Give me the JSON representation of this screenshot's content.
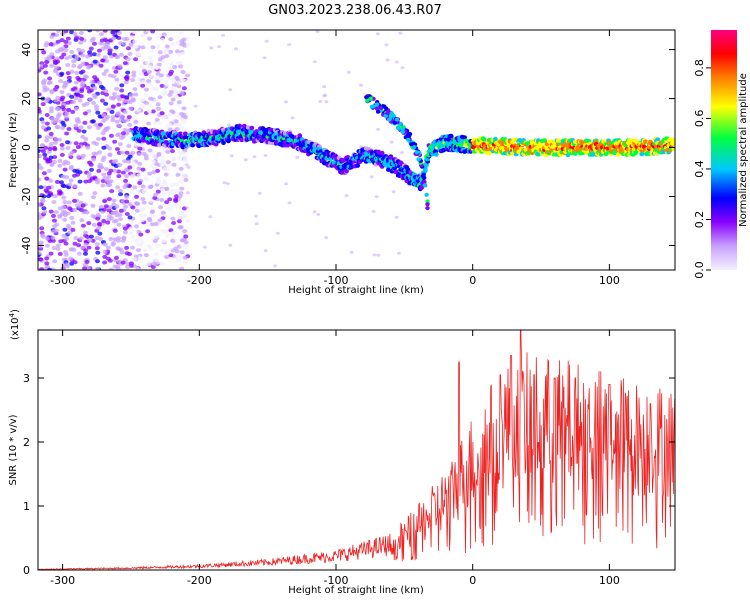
{
  "title": "GN03.2023.238.06.43.R07",
  "chart_data": [
    {
      "type": "heatmap",
      "xlabel": "Height of straight line (km)",
      "ylabel": "Frequency (Hz)",
      "xlim": [
        -318,
        148
      ],
      "ylim": [
        -50,
        48
      ],
      "xticks": [
        -300,
        -200,
        -100,
        0,
        100
      ],
      "yticks": [
        -40,
        -20,
        0,
        20,
        40
      ],
      "colorbar": {
        "label": "Normalized spectral amplitude",
        "range": [
          0,
          0.95
        ],
        "ticks": [
          0,
          0.2,
          0.4,
          0.6,
          0.8
        ],
        "colormap": [
          "#f0f0ff",
          "#c8a0ff",
          "#8800ff",
          "#0000ff",
          "#00c8ff",
          "#00ff40",
          "#ffff00",
          "#ff8000",
          "#ff0000",
          "#ff0080"
        ]
      },
      "ridge": [
        {
          "x": -245,
          "y": 5
        },
        {
          "x": -230,
          "y": 4
        },
        {
          "x": -210,
          "y": 3
        },
        {
          "x": -190,
          "y": 4
        },
        {
          "x": -170,
          "y": 6
        },
        {
          "x": -150,
          "y": 5
        },
        {
          "x": -130,
          "y": 3
        },
        {
          "x": -110,
          "y": -3
        },
        {
          "x": -95,
          "y": -8
        },
        {
          "x": -80,
          "y": -3
        },
        {
          "x": -65,
          "y": -5
        },
        {
          "x": -50,
          "y": -10
        },
        {
          "x": -38,
          "y": -15
        },
        {
          "x": -32,
          "y": -2
        },
        {
          "x": -20,
          "y": 2
        },
        {
          "x": 0,
          "y": 1
        },
        {
          "x": 40,
          "y": 0
        },
        {
          "x": 80,
          "y": 0
        },
        {
          "x": 120,
          "y": 0
        },
        {
          "x": 148,
          "y": 1
        }
      ],
      "branch": [
        {
          "x": -78,
          "y": 20
        },
        {
          "x": -65,
          "y": 15
        },
        {
          "x": -55,
          "y": 10
        },
        {
          "x": -45,
          "y": 3
        },
        {
          "x": -38,
          "y": -5
        },
        {
          "x": -35,
          "y": -15
        },
        {
          "x": -32,
          "y": -28
        }
      ]
    },
    {
      "type": "line",
      "xlabel": "Height of straight line (km)",
      "ylabel": "SNR (10 * v/v)",
      "yscale_label": "(x10",
      "yscale_exp": "4",
      "yscale_close": ")",
      "xlim": [
        -318,
        148
      ],
      "ylim": [
        0,
        3.75
      ],
      "xticks": [
        -300,
        -200,
        -100,
        0,
        100
      ],
      "yticks": [
        0,
        1,
        2,
        3
      ],
      "color": "#ee2222",
      "envelope": [
        {
          "x": -318,
          "y": 0.01
        },
        {
          "x": -250,
          "y": 0.03
        },
        {
          "x": -200,
          "y": 0.06
        },
        {
          "x": -150,
          "y": 0.12
        },
        {
          "x": -100,
          "y": 0.22
        },
        {
          "x": -60,
          "y": 0.4
        },
        {
          "x": -40,
          "y": 0.7
        },
        {
          "x": -20,
          "y": 1.1
        },
        {
          "x": 0,
          "y": 1.7
        },
        {
          "x": 20,
          "y": 2.2
        },
        {
          "x": 40,
          "y": 2.35
        },
        {
          "x": 60,
          "y": 2.3
        },
        {
          "x": 80,
          "y": 2.25
        },
        {
          "x": 100,
          "y": 2.15
        },
        {
          "x": 120,
          "y": 2.05
        },
        {
          "x": 148,
          "y": 2.0
        }
      ],
      "peaks": [
        {
          "x": -10,
          "y": 3.25
        },
        {
          "x": 20,
          "y": 3.05
        },
        {
          "x": 28,
          "y": 3.35
        },
        {
          "x": 35,
          "y": 3.75
        },
        {
          "x": 45,
          "y": 3.05
        },
        {
          "x": 60,
          "y": 3.0
        },
        {
          "x": 75,
          "y": 3.0
        },
        {
          "x": 100,
          "y": 2.9
        },
        {
          "x": 130,
          "y": 2.6
        }
      ]
    }
  ]
}
